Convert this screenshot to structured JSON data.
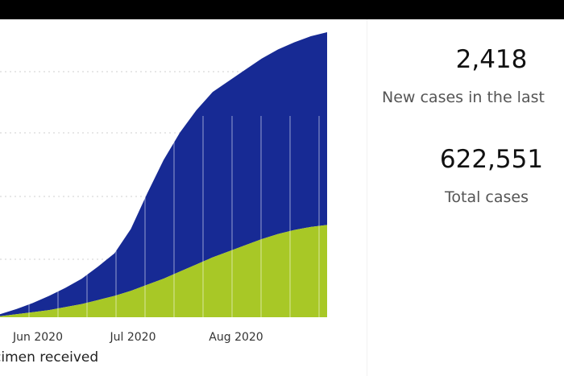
{
  "kpis": [
    {
      "value": "2,418",
      "label": "New cases in the last"
    },
    {
      "value": "622,551",
      "label": "Total cases"
    }
  ],
  "chart_data": {
    "type": "area",
    "x_ticks": [
      "Jun 2020",
      "Jul 2020",
      "Aug 2020"
    ],
    "xlabel": "cimen received",
    "stacked": true,
    "grid": true,
    "colors": {
      "lower": "#a8c826",
      "upper": "#172a94",
      "grid": "#cfcfcf"
    },
    "series": [
      {
        "values": [
          1,
          3,
          5,
          7,
          10,
          13,
          17,
          21,
          26,
          32,
          38,
          45,
          52,
          59,
          65,
          71,
          77,
          82,
          86,
          89,
          91
        ]
      },
      {
        "values": [
          2,
          5,
          9,
          14,
          19,
          25,
          33,
          42,
          61,
          90,
          117,
          137,
          152,
          163,
          168,
          173,
          178,
          182,
          185,
          188,
          190
        ]
      }
    ]
  }
}
